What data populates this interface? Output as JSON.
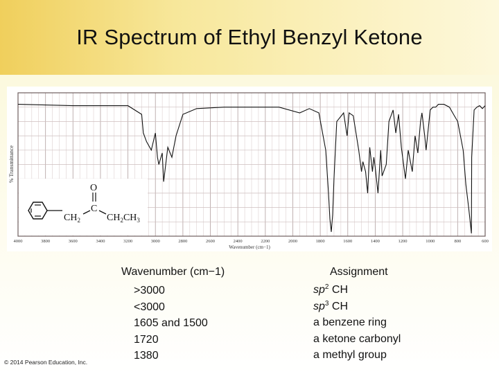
{
  "slide": {
    "title": "IR Spectrum of Ethyl Benzyl Ketone",
    "copyright": "© 2014 Pearson Education, Inc."
  },
  "table": {
    "wavenumber_header": "Wavenumber (cm−1)",
    "assignment_header": "Assignment",
    "rows": [
      {
        "wavenumber": ">3000",
        "prefix": "sp",
        "sup": "2",
        "rest": " CH"
      },
      {
        "wavenumber": "<3000",
        "prefix": "sp",
        "sup": "3",
        "rest": " CH"
      },
      {
        "wavenumber": "1605 and 1500",
        "prefix": "",
        "sup": "",
        "rest": "a benzene ring"
      },
      {
        "wavenumber": "1720",
        "prefix": "",
        "sup": "",
        "rest": "a ketone carbonyl"
      },
      {
        "wavenumber": "1380",
        "prefix": "",
        "sup": "",
        "rest": "a methyl group"
      }
    ]
  },
  "structure": {
    "carbonyl_o": "O",
    "carbonyl_c": "C",
    "left_group": "CH",
    "left_sub": "2",
    "right_group_a": "CH",
    "right_sub_a": "2",
    "right_group_b": "CH",
    "right_sub_b": "3"
  },
  "chart_data": {
    "type": "line",
    "title": "",
    "xlabel": "Wavenumber (cm−1)",
    "ylabel": "% Transmittance",
    "xlim": [
      4000,
      600
    ],
    "ylim": [
      0,
      100
    ],
    "grid": true,
    "x_ticks": [
      4000,
      3800,
      3600,
      3400,
      3200,
      3000,
      2800,
      2600,
      2400,
      2200,
      2000,
      1800,
      1600,
      1400,
      1200,
      1000,
      800,
      600
    ],
    "x_tick_labels": [
      "4000",
      "3800",
      "3600",
      "3400",
      "3200",
      "3000",
      "2800",
      "2600",
      "2400",
      "2200",
      "2000",
      "1800",
      "1600",
      "1400",
      "1200",
      "1000",
      "800",
      "600"
    ],
    "series": [
      {
        "x": [
          4000,
          3600,
          3200,
          3100,
          3088,
          3065,
          3030,
          3000,
          2985,
          2975,
          2950,
          2940,
          2910,
          2880,
          2850,
          2800,
          2700,
          2500,
          2300,
          2100,
          1950,
          1880,
          1810,
          1760,
          1740,
          1730,
          1720,
          1710,
          1700,
          1680,
          1630,
          1605,
          1590,
          1560,
          1520,
          1500,
          1490,
          1470,
          1455,
          1440,
          1420,
          1410,
          1400,
          1380,
          1360,
          1350,
          1320,
          1300,
          1270,
          1250,
          1230,
          1210,
          1180,
          1160,
          1130,
          1110,
          1090,
          1070,
          1060,
          1040,
          1030,
          1000,
          980,
          960,
          940,
          900,
          860,
          830,
          800,
          760,
          740,
          720,
          700,
          698,
          680,
          660,
          640,
          620,
          600
        ],
        "y": [
          92,
          91,
          91,
          85,
          72,
          66,
          60,
          72,
          55,
          50,
          58,
          38,
          62,
          55,
          70,
          85,
          89,
          90,
          90,
          90,
          86,
          89,
          86,
          60,
          30,
          12,
          3,
          15,
          40,
          80,
          86,
          70,
          86,
          84,
          60,
          45,
          52,
          45,
          30,
          62,
          45,
          55,
          48,
          30,
          60,
          42,
          50,
          80,
          88,
          72,
          85,
          62,
          40,
          60,
          45,
          70,
          58,
          80,
          86,
          70,
          60,
          88,
          90,
          90,
          92,
          92,
          90,
          85,
          80,
          60,
          36,
          20,
          2,
          55,
          88,
          90,
          91,
          89,
          91
        ]
      }
    ]
  }
}
